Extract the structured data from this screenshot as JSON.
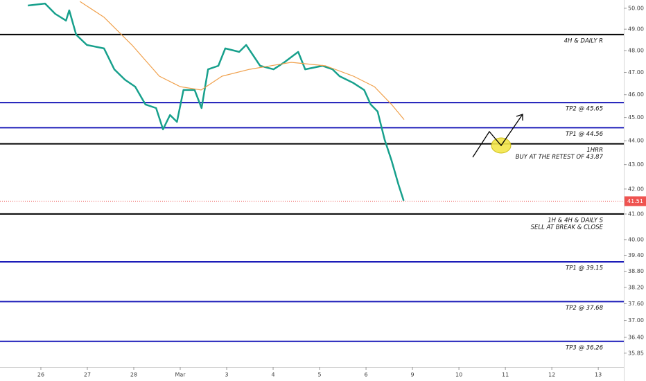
{
  "chart_data": {
    "type": "line",
    "log_scale": true,
    "ylim": [
      35.37,
      50.4
    ],
    "xlim": [
      -0.88,
      12.55
    ],
    "yticks": [
      {
        "value": 50,
        "label": "50.00"
      },
      {
        "value": 49,
        "label": "49.00"
      },
      {
        "value": 48,
        "label": "48.00"
      },
      {
        "value": 47,
        "label": "47.00"
      },
      {
        "value": 46,
        "label": "46.00"
      },
      {
        "value": 45,
        "label": "45.00"
      },
      {
        "value": 44,
        "label": "44.00"
      },
      {
        "value": 43,
        "label": "43.00"
      },
      {
        "value": 42,
        "label": "42.00"
      },
      {
        "value": 41,
        "label": "41.00"
      },
      {
        "value": 40,
        "label": "40.00"
      },
      {
        "value": 39.4,
        "label": "39.40"
      },
      {
        "value": 38.8,
        "label": "38.80"
      },
      {
        "value": 38.2,
        "label": "38.20"
      },
      {
        "value": 37.6,
        "label": "37.60"
      },
      {
        "value": 37,
        "label": "37.00"
      },
      {
        "value": 36.4,
        "label": "36.40"
      },
      35.85
    ],
    "xticks": [
      {
        "value": 0,
        "label": "26"
      },
      {
        "value": 1,
        "label": "27"
      },
      {
        "value": 2,
        "label": "28"
      },
      {
        "value": 3,
        "label": "Mar"
      },
      {
        "value": 4,
        "label": "3"
      },
      {
        "value": 5,
        "label": "4"
      },
      {
        "value": 6,
        "label": "5"
      },
      {
        "value": 7,
        "label": "6"
      },
      {
        "value": 8,
        "label": "9"
      },
      {
        "value": 9,
        "label": "10"
      },
      {
        "value": 10,
        "label": "11"
      },
      {
        "value": 11,
        "label": "12"
      },
      {
        "value": 12,
        "label": "13"
      }
    ],
    "series": [
      {
        "color": "#17a08c",
        "x": [
          -0.28,
          0.09,
          0.31,
          0.54,
          0.61,
          0.76,
          0.99,
          1.36,
          1.58,
          1.81,
          2.03,
          2.25,
          2.48,
          2.63,
          2.78,
          2.93,
          3.07,
          3.31,
          3.46,
          3.6,
          3.82,
          3.97,
          4.27,
          4.42,
          4.72,
          5.01,
          5.24,
          5.54,
          5.69,
          6.06,
          6.28,
          6.43,
          6.73,
          6.96,
          7.1,
          7.25,
          7.4,
          7.55,
          7.7,
          7.81
        ],
        "values": [
          50.13,
          50.23,
          49.73,
          49.41,
          49.9,
          48.74,
          48.26,
          48.1,
          47.14,
          46.67,
          46.36,
          45.57,
          45.41,
          44.49,
          45.11,
          44.81,
          46.21,
          46.21,
          45.41,
          47.14,
          47.3,
          48.1,
          47.94,
          48.26,
          47.3,
          47.14,
          47.46,
          47.94,
          47.14,
          47.3,
          47.14,
          46.83,
          46.52,
          46.21,
          45.57,
          45.26,
          44.05,
          43.17,
          42.17,
          41.53
        ]
      },
      {
        "color": "#f0a04b",
        "x": [
          0.84,
          1.36,
          1.96,
          2.55,
          3.0,
          3.45,
          3.9,
          4.49,
          5.39,
          6.13,
          6.73,
          7.18,
          7.55,
          7.82
        ],
        "values": [
          50.33,
          49.57,
          48.26,
          46.83,
          46.36,
          46.21,
          46.83,
          47.14,
          47.46,
          47.3,
          46.83,
          46.36,
          45.57,
          44.91
        ]
      }
    ],
    "levels": [
      {
        "value": 48.75,
        "color": "#000000",
        "labels": [
          "4H & DAILY R"
        ]
      },
      {
        "value": 45.65,
        "color": "#1a1ab8",
        "labels": [
          "TP2 @ 45.65"
        ]
      },
      {
        "value": 44.56,
        "color": "#1a1ab8",
        "labels": [
          "TP1 @ 44.56"
        ]
      },
      {
        "value": 43.87,
        "color": "#000000",
        "labels": [
          "1HRR",
          "BUY AT THE RETEST OF 43.87"
        ]
      },
      {
        "value": 41.0,
        "color": "#000000",
        "labels": [
          "1H & 4H & DAILY S",
          "SELL AT BREAK & CLOSE"
        ]
      },
      {
        "value": 39.15,
        "color": "#1a1ab8",
        "labels": [
          "TP1 @ 39.15"
        ]
      },
      {
        "value": 37.68,
        "color": "#1a1ab8",
        "labels": [
          "TP2 @ 37.68"
        ]
      },
      {
        "value": 36.26,
        "color": "#1a1ab8",
        "labels": [
          "TP3 @ 36.26"
        ]
      }
    ],
    "last_price": 41.51,
    "last_price_color": "#ef5350"
  }
}
